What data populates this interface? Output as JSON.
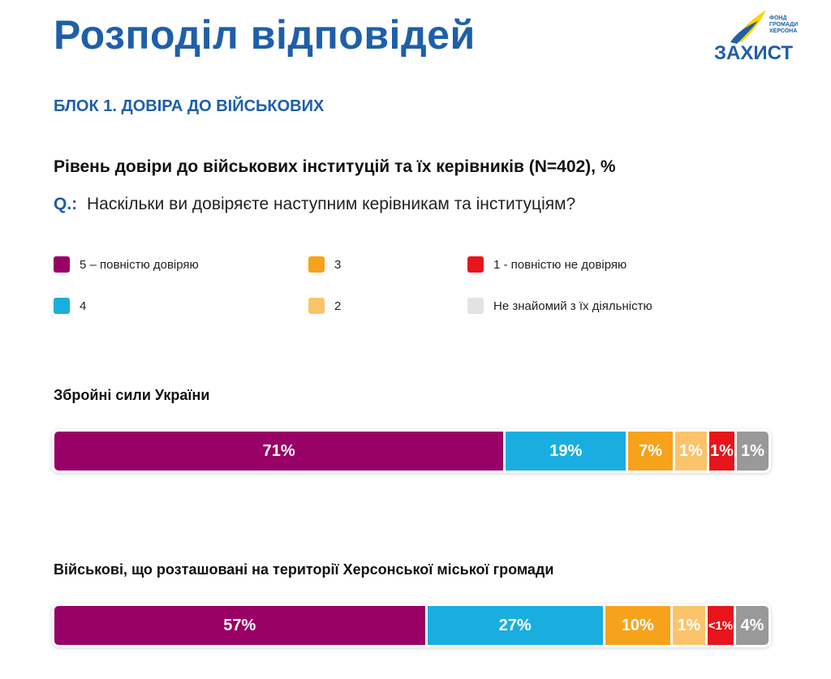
{
  "header": {
    "title": "Розподіл відповідей",
    "logo": {
      "fund_text": "ФОНД ГРОМАДИ ХЕРСОНА",
      "word": "ЗАХИСТ"
    }
  },
  "block_title": "БЛОК 1. ДОВІРА ДО ВІЙСЬКОВИХ",
  "chart_title": "Рівень довіри до військових інституцій та їх керівників (N=402), %",
  "question": {
    "prefix": "Q.:",
    "text": "Наскільки ви довіряєте наступним керівникам та інституціям?"
  },
  "legend": [
    {
      "label": "5 – повністю довіряю",
      "color": "#990066"
    },
    {
      "label": "4",
      "color": "#1aaee0"
    },
    {
      "label": "3",
      "color": "#f7a21b"
    },
    {
      "label": "2",
      "color": "#fbc46a"
    },
    {
      "label": "1 - повністю не довіряю",
      "color": "#e8141b"
    },
    {
      "label": "Не знайомий з їх діяльністю",
      "color": "#e3e3e3"
    }
  ],
  "chart_data": {
    "type": "bar",
    "stacked": true,
    "orientation": "horizontal",
    "unit": "%",
    "categories": [
      "5 – повністю довіряю",
      "4",
      "3",
      "2",
      "1 - повністю не довіряю",
      "Не знайомий з їх діяльністю"
    ],
    "rows": [
      {
        "name": "Збройні сили України",
        "values": [
          71,
          19,
          7,
          1,
          1,
          1
        ],
        "labels": [
          "71%",
          "19%",
          "7%",
          "1%",
          "1%",
          "1%"
        ],
        "colors": [
          "#990066",
          "#1aaee0",
          "#f7a21b",
          "#fbc46a",
          "#e8141b",
          "#999999"
        ]
      },
      {
        "name": "Військові, що розташовані на території  Херсонської міської громади",
        "values": [
          57,
          27,
          10,
          1,
          0.5,
          4
        ],
        "labels": [
          "57%",
          "27%",
          "10%",
          "1%",
          "<1%",
          "4%"
        ],
        "colors": [
          "#990066",
          "#1aaee0",
          "#f7a21b",
          "#fbc46a",
          "#e8141b",
          "#999999"
        ]
      }
    ]
  }
}
